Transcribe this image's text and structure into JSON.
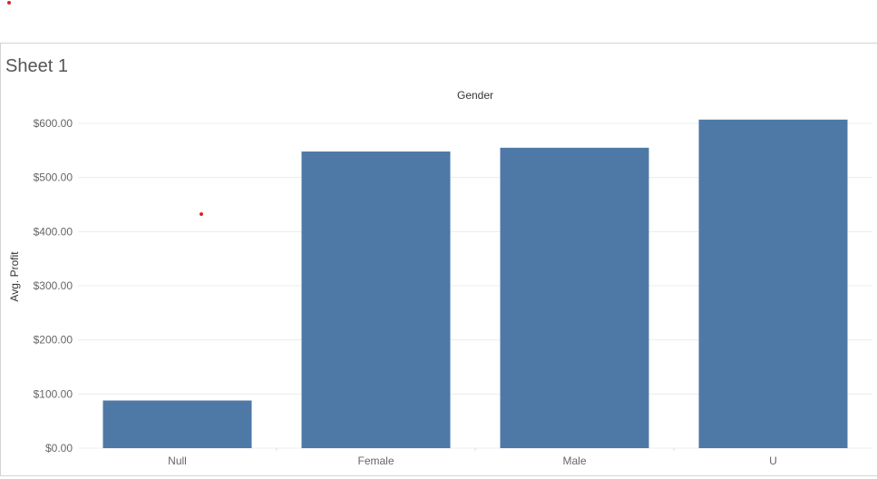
{
  "sheet": {
    "title": "Sheet 1"
  },
  "colors": {
    "bar": "#4e79a7",
    "marker": "#d62728",
    "gridline": "#ececec"
  },
  "chart_data": {
    "type": "bar",
    "title": "",
    "column_header": "Gender",
    "categories": [
      "Null",
      "Female",
      "Male",
      "U"
    ],
    "values": [
      88,
      548,
      555,
      607
    ],
    "xlabel": "",
    "ylabel": "Avg. Profit",
    "ylim": [
      0,
      600
    ],
    "yticks": [
      0,
      100,
      200,
      300,
      400,
      500,
      600
    ],
    "ytick_labels": [
      "$0.00",
      "$100.00",
      "$200.00",
      "$300.00",
      "$400.00",
      "$500.00",
      "$600.00"
    ],
    "grid": true,
    "legend": "none"
  }
}
